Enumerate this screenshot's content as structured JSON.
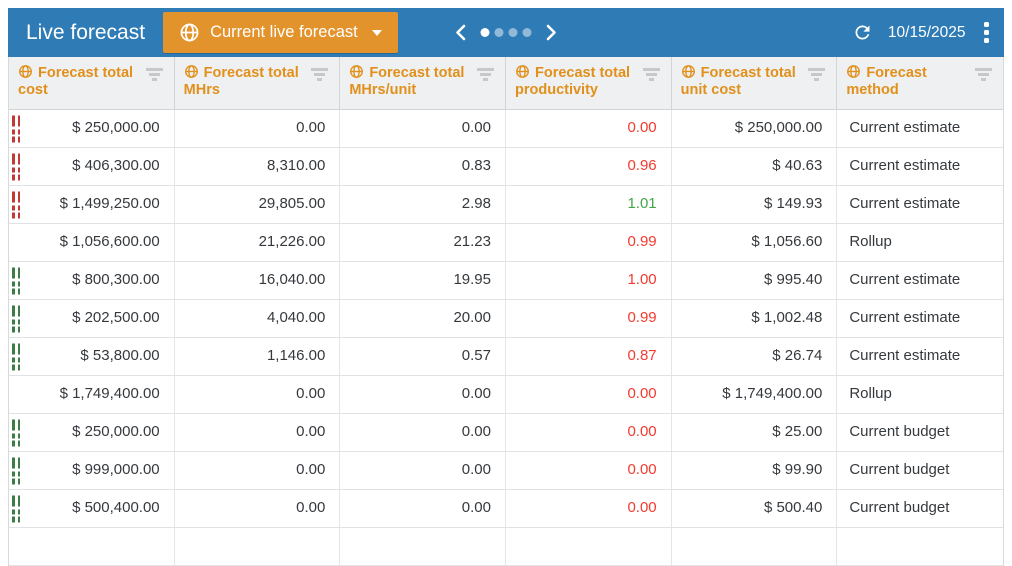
{
  "header": {
    "title": "Live forecast",
    "forecast_selector": {
      "label": "Current live forecast"
    },
    "pager": {
      "dot_count": 4,
      "active_dot": 0
    },
    "date": "10/15/2025"
  },
  "colors": {
    "topbar_blue": "#2e7bb5",
    "button_orange": "#e3932b",
    "header_text_orange": "#e2901c",
    "negative_value_red": "#f23b31",
    "positive_value_green": "#43a648",
    "indicator_red": "#c23a34",
    "indicator_green": "#3c7d46"
  },
  "table": {
    "columns": [
      {
        "key": "total_cost",
        "label": "Forecast total cost",
        "align": "right"
      },
      {
        "key": "total_mhrs",
        "label": "Forecast total MHrs",
        "align": "right"
      },
      {
        "key": "total_mhrs_per_unit",
        "label": "Forecast total MHrs/unit",
        "align": "right"
      },
      {
        "key": "total_productivity",
        "label": "Forecast total productivity",
        "align": "right"
      },
      {
        "key": "total_unit_cost",
        "label": "Forecast total unit cost",
        "align": "right"
      },
      {
        "key": "method",
        "label": "Forecast method",
        "align": "left"
      }
    ],
    "rows": [
      {
        "indicator": "red",
        "total_cost": "$ 250,000.00",
        "total_mhrs": "0.00",
        "total_mhrs_per_unit": "0.00",
        "total_productivity": "0.00",
        "productivity_color": "red",
        "total_unit_cost": "$ 250,000.00",
        "method": "Current estimate"
      },
      {
        "indicator": "red",
        "total_cost": "$ 406,300.00",
        "total_mhrs": "8,310.00",
        "total_mhrs_per_unit": "0.83",
        "total_productivity": "0.96",
        "productivity_color": "red",
        "total_unit_cost": "$ 40.63",
        "method": "Current estimate"
      },
      {
        "indicator": "red",
        "total_cost": "$ 1,499,250.00",
        "total_mhrs": "29,805.00",
        "total_mhrs_per_unit": "2.98",
        "total_productivity": "1.01",
        "productivity_color": "green",
        "total_unit_cost": "$ 149.93",
        "method": "Current estimate"
      },
      {
        "indicator": "none",
        "total_cost": "$ 1,056,600.00",
        "total_mhrs": "21,226.00",
        "total_mhrs_per_unit": "21.23",
        "total_productivity": "0.99",
        "productivity_color": "red",
        "total_unit_cost": "$ 1,056.60",
        "method": "Rollup"
      },
      {
        "indicator": "green",
        "total_cost": "$ 800,300.00",
        "total_mhrs": "16,040.00",
        "total_mhrs_per_unit": "19.95",
        "total_productivity": "1.00",
        "productivity_color": "red",
        "total_unit_cost": "$ 995.40",
        "method": "Current estimate"
      },
      {
        "indicator": "green",
        "total_cost": "$ 202,500.00",
        "total_mhrs": "4,040.00",
        "total_mhrs_per_unit": "20.00",
        "total_productivity": "0.99",
        "productivity_color": "red",
        "total_unit_cost": "$ 1,002.48",
        "method": "Current estimate"
      },
      {
        "indicator": "green",
        "total_cost": "$ 53,800.00",
        "total_mhrs": "1,146.00",
        "total_mhrs_per_unit": "0.57",
        "total_productivity": "0.87",
        "productivity_color": "red",
        "total_unit_cost": "$ 26.74",
        "method": "Current estimate"
      },
      {
        "indicator": "none",
        "total_cost": "$ 1,749,400.00",
        "total_mhrs": "0.00",
        "total_mhrs_per_unit": "0.00",
        "total_productivity": "0.00",
        "productivity_color": "red",
        "total_unit_cost": "$ 1,749,400.00",
        "method": "Rollup"
      },
      {
        "indicator": "green",
        "total_cost": "$ 250,000.00",
        "total_mhrs": "0.00",
        "total_mhrs_per_unit": "0.00",
        "total_productivity": "0.00",
        "productivity_color": "red",
        "total_unit_cost": "$ 25.00",
        "method": "Current budget"
      },
      {
        "indicator": "green",
        "total_cost": "$ 999,000.00",
        "total_mhrs": "0.00",
        "total_mhrs_per_unit": "0.00",
        "total_productivity": "0.00",
        "productivity_color": "red",
        "total_unit_cost": "$ 99.90",
        "method": "Current budget"
      },
      {
        "indicator": "green",
        "total_cost": "$ 500,400.00",
        "total_mhrs": "0.00",
        "total_mhrs_per_unit": "0.00",
        "total_productivity": "0.00",
        "productivity_color": "red",
        "total_unit_cost": "$ 500.40",
        "method": "Current budget"
      }
    ]
  }
}
